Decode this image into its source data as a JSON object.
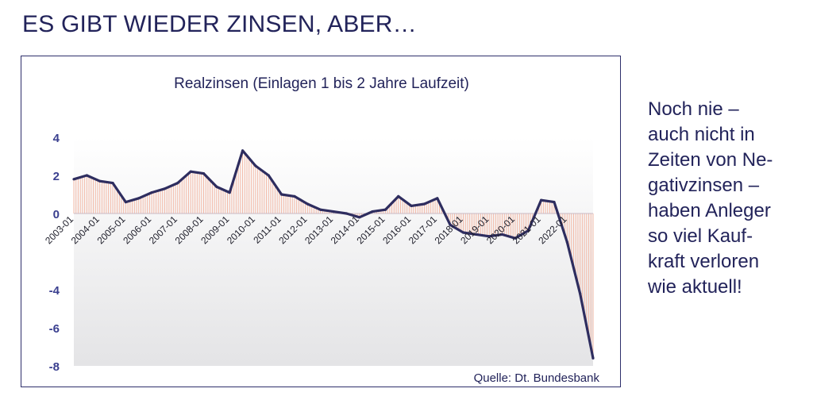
{
  "slide": {
    "title": "ES GIBT WIEDER ZINSEN, ABER…",
    "side_text_lines": [
      "Noch nie –",
      "auch nicht in",
      "Zeiten von Ne-",
      "gativzinsen –",
      "haben Anleger",
      "so viel Kauf-",
      "kraft verloren",
      "wie aktuell!"
    ]
  },
  "colors": {
    "text": "#22235a",
    "line": "#2e2d5f",
    "fill": "#f3b8a5",
    "axis_labels": "#3a3f8f",
    "plot_bg_top": "#ffffff",
    "plot_bg_bottom": "#e4e4e6"
  },
  "chart_data": {
    "type": "area",
    "title": "Realzinsen (Einlagen 1 bis 2 Jahre Laufzeit)",
    "source": "Quelle: Dt. Bundesbank",
    "xlabel": "",
    "ylabel": "",
    "ylim": [
      -8,
      4
    ],
    "yticks": [
      4,
      2,
      0,
      -2,
      -4,
      -6,
      -8
    ],
    "ytick_labels": [
      "4",
      "2",
      "0",
      "",
      "-4",
      "-6",
      "-8"
    ],
    "xtick_labels": [
      "2003-01",
      "2004-01",
      "2005-01",
      "2006-01",
      "2007-01",
      "2008-01",
      "2009-01",
      "2010-01",
      "2011-01",
      "2012-01",
      "2013-01",
      "2014-01",
      "2015-01",
      "2016-01",
      "2017-01",
      "2018-01",
      "2019-01",
      "2020-01",
      "2021-01",
      "2022-01"
    ],
    "grid": false,
    "series": [
      {
        "x": [
          "2003-01",
          "2003-07",
          "2004-01",
          "2004-07",
          "2005-01",
          "2005-07",
          "2006-01",
          "2006-07",
          "2007-01",
          "2007-07",
          "2008-01",
          "2008-07",
          "2009-01",
          "2009-07",
          "2010-01",
          "2010-07",
          "2011-01",
          "2011-07",
          "2012-01",
          "2012-07",
          "2013-01",
          "2013-07",
          "2014-01",
          "2014-07",
          "2015-01",
          "2015-07",
          "2016-01",
          "2016-07",
          "2017-01",
          "2017-07",
          "2018-01",
          "2018-07",
          "2019-01",
          "2019-07",
          "2020-01",
          "2020-07",
          "2021-01",
          "2021-07",
          "2022-01",
          "2022-07",
          "2023-01"
        ],
        "values": [
          1.8,
          2.0,
          1.7,
          1.6,
          0.6,
          0.8,
          1.1,
          1.3,
          1.6,
          2.2,
          2.1,
          1.4,
          1.1,
          3.3,
          2.5,
          2.0,
          1.0,
          0.9,
          0.5,
          0.2,
          0.1,
          0.0,
          -0.2,
          0.1,
          0.2,
          0.9,
          0.4,
          0.5,
          0.8,
          -0.6,
          -1.0,
          -1.1,
          -1.2,
          -1.1,
          -1.3,
          -0.9,
          0.7,
          0.6,
          -1.5,
          -4.2,
          -7.6
        ]
      }
    ]
  }
}
